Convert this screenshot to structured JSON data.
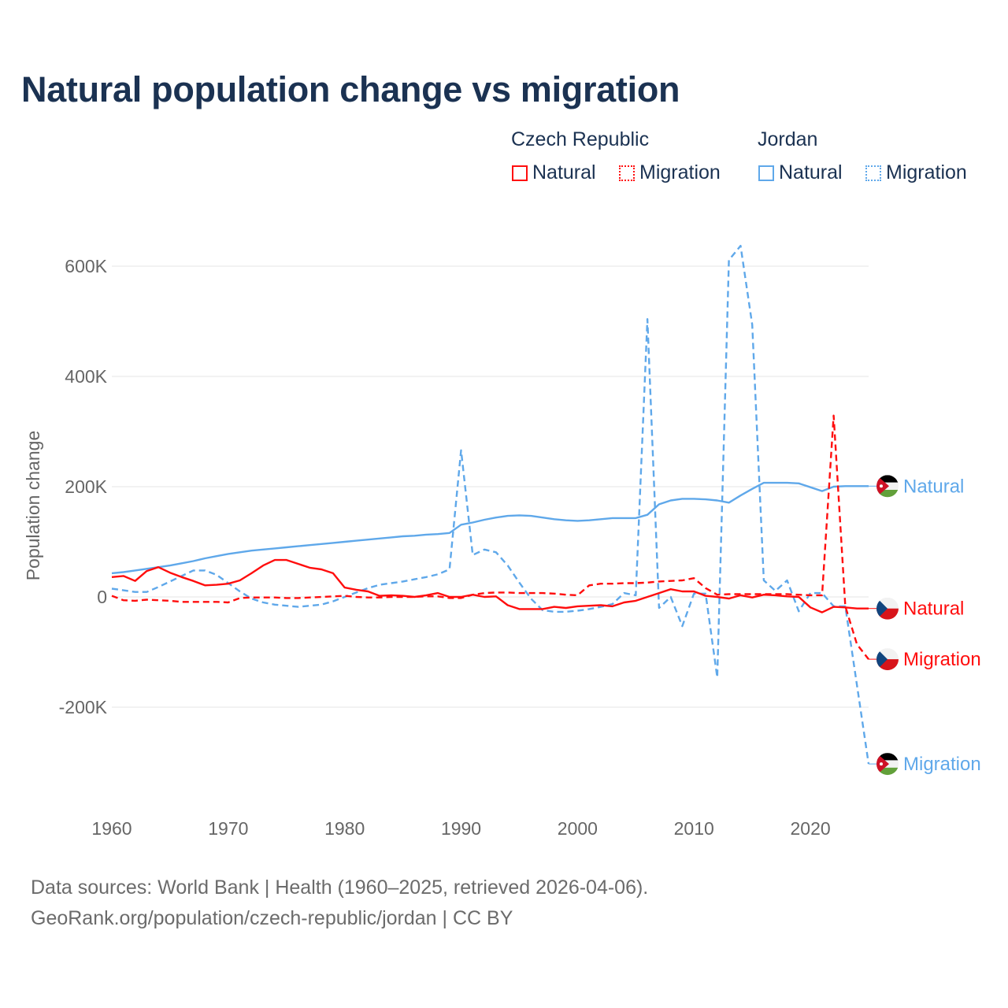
{
  "title": "Natural population change vs migration",
  "legend": {
    "groups": [
      {
        "name": "Czech Republic",
        "items": [
          "Natural",
          "Migration"
        ]
      },
      {
        "name": "Jordan",
        "items": [
          "Natural",
          "Migration"
        ]
      }
    ]
  },
  "footer": {
    "line1": "Data sources: World Bank | Health (1960–2025, retrieved 2026-04-06).",
    "line2": "GeoRank.org/population/czech-republic/jordan | CC BY"
  },
  "colors": {
    "czech": "#ff0d0d",
    "jordan": "#5fa8ea",
    "title": "#1b3252",
    "grid": "#e6e6e6",
    "tick": "#666666"
  },
  "chart_data": {
    "type": "line",
    "title": "Natural population change vs migration",
    "xlabel": "",
    "ylabel": "Population change",
    "xlim": [
      1960,
      2025
    ],
    "ylim": [
      -330,
      650
    ],
    "unit": "thousands",
    "grid": true,
    "legend_placement": "top-right",
    "x_ticks": [
      1960,
      1970,
      1980,
      1990,
      2000,
      2010,
      2020
    ],
    "x_tick_labels": [
      "1960",
      "1970",
      "1980",
      "1990",
      "2000",
      "2010",
      "2020"
    ],
    "y_ticks": [
      600,
      400,
      200,
      0,
      -200
    ],
    "y_tick_labels": [
      "600K",
      "400K",
      "200K",
      "0",
      "-200K"
    ],
    "x_start": 1960,
    "series": [
      {
        "name": "Jordan Natural",
        "country": "Jordan",
        "kind": "Natural",
        "end_label": "Natural",
        "dashed": false,
        "values": [
          43,
          45,
          48,
          51,
          54,
          57,
          61,
          65,
          70,
          74,
          78,
          81,
          84,
          86,
          88,
          90,
          92,
          94,
          96,
          98,
          100,
          102,
          104,
          106,
          108,
          110,
          111,
          113,
          114,
          116,
          131,
          135,
          140,
          144,
          147,
          148,
          147,
          144,
          141,
          139,
          138,
          139,
          141,
          143,
          143,
          143,
          149,
          168,
          175,
          178,
          178,
          177,
          175,
          171,
          184,
          196,
          207,
          207,
          207,
          206,
          199,
          192,
          200,
          201,
          201,
          201
        ]
      },
      {
        "name": "Jordan Migration",
        "country": "Jordan",
        "kind": "Migration",
        "end_label": "Migration",
        "dashed": true,
        "values": [
          15,
          12,
          9,
          9,
          18,
          28,
          38,
          48,
          48,
          40,
          25,
          10,
          -3,
          -10,
          -14,
          -16,
          -18,
          -16,
          -14,
          -8,
          0,
          8,
          16,
          22,
          25,
          28,
          32,
          36,
          41,
          50,
          266,
          76,
          86,
          81,
          57,
          26,
          -3,
          -24,
          -27,
          -27,
          -25,
          -22,
          -18,
          -13,
          7,
          3,
          504,
          -20,
          0,
          -53,
          6,
          6,
          -146,
          611,
          637,
          494,
          30,
          11,
          30,
          -26,
          7,
          7,
          -17,
          -17,
          -160,
          -303
        ]
      },
      {
        "name": "Czech Republic Natural",
        "country": "Czech Republic",
        "kind": "Natural",
        "end_label": "Natural",
        "dashed": false,
        "values": [
          36,
          38,
          29,
          47,
          54,
          44,
          36,
          29,
          21,
          22,
          24,
          30,
          43,
          57,
          67,
          67,
          60,
          53,
          50,
          43,
          17,
          13,
          10,
          2,
          3,
          2,
          0,
          3,
          7,
          0,
          0,
          4,
          0,
          1,
          -15,
          -22,
          -22,
          -22,
          -18,
          -20,
          -17,
          -16,
          -15,
          -17,
          -10,
          -7,
          0,
          7,
          14,
          10,
          10,
          2,
          0,
          -3,
          3,
          -1,
          4,
          3,
          1,
          0,
          -19,
          -28,
          -18,
          -19,
          -21,
          -21
        ]
      },
      {
        "name": "Czech Republic Migration",
        "country": "Czech Republic",
        "kind": "Migration",
        "end_label": "Migration",
        "dashed": true,
        "values": [
          2,
          -6,
          -7,
          -5,
          -6,
          -7,
          -9,
          -9,
          -9,
          -9,
          -10,
          -2,
          -1,
          -1,
          -1,
          -2,
          -2,
          -1,
          0,
          1,
          2,
          0,
          -1,
          -1,
          0,
          0,
          0,
          1,
          1,
          -2,
          -2,
          4,
          7,
          8,
          8,
          7,
          7,
          7,
          6,
          4,
          3,
          21,
          24,
          24,
          25,
          25,
          26,
          28,
          29,
          30,
          34,
          16,
          4,
          5,
          5,
          5,
          5,
          5,
          5,
          4,
          3,
          3,
          329,
          -17,
          -86,
          -113
        ]
      }
    ]
  }
}
